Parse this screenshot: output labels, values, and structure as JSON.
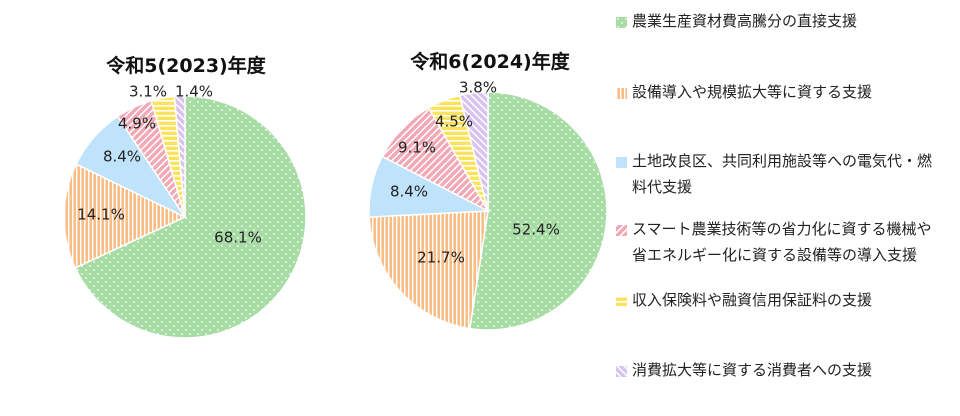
{
  "chart_data": [
    {
      "type": "pie",
      "title": "令和5(2023)年度",
      "slices": [
        {
          "name": "農業生産資材費高騰分の直接支援",
          "value": 68.1,
          "label": "68.1%"
        },
        {
          "name": "設備導入や規模拡大等に資する支援",
          "value": 14.1,
          "label": "14.1%"
        },
        {
          "name": "土地改良区、共同利用施設等への電気代・燃料代支援",
          "value": 8.4,
          "label": "8.4%"
        },
        {
          "name": "スマート農業技術等の省力化に資する機械や省エネルギー化に資する設備等の導入支援",
          "value": 4.9,
          "label": "4.9%"
        },
        {
          "name": "収入保険料や融資信用保証料の支援",
          "value": 3.1,
          "label": "3.1%"
        },
        {
          "name": "消費拡大等に資する消費者への支援",
          "value": 1.4,
          "label": "1.4%"
        }
      ]
    },
    {
      "type": "pie",
      "title": "令和6(2024)年度",
      "slices": [
        {
          "name": "農業生産資材費高騰分の直接支援",
          "value": 52.4,
          "label": "52.4%"
        },
        {
          "name": "設備導入や規模拡大等に資する支援",
          "value": 21.7,
          "label": "21.7%"
        },
        {
          "name": "土地改良区、共同利用施設等への電気代・燃料代支援",
          "value": 8.4,
          "label": "8.4%"
        },
        {
          "name": "スマート農業技術等の省力化に資する機械や省エネルギー化に資する設備等の導入支援",
          "value": 9.1,
          "label": "9.1%"
        },
        {
          "name": "収入保険料や融資信用保証料の支援",
          "value": 4.5,
          "label": "4.5%"
        },
        {
          "name": "消費拡大等に資する消費者への支援",
          "value": 3.8,
          "label": "3.8%"
        }
      ]
    }
  ],
  "legend": [
    {
      "label": "農業生産資材費高騰分の直接支援",
      "lines": [
        "農業生産資材費高騰分の直接支援"
      ],
      "color": "#a8dca5",
      "pattern": "dots"
    },
    {
      "label": "設備導入や規模拡大等に資する支援",
      "lines": [
        "設備導入や規模拡大等に資する支援"
      ],
      "color": "#fbbd86",
      "pattern": "vstripes"
    },
    {
      "label": "土地改良区、共同利用施設等への電気代・燃料代支援",
      "lines": [
        "土地改良区、共同利用施設等への電気代・燃",
        "料代支援"
      ],
      "color": "#bfe3fa",
      "pattern": "solid"
    },
    {
      "label": "スマート農業技術等の省力化に資する機械や省エネルギー化に資する設備等の導入支援",
      "lines": [
        "スマート農業技術等の省力化に資する機械や",
        "省エネルギー化に資する設備等の導入支援"
      ],
      "color": "#f2a9b6",
      "pattern": "diag"
    },
    {
      "label": "収入保険料や融資信用保証料の支援",
      "lines": [
        "収入保険料や融資信用保証料の支援"
      ],
      "color": "#fde35a",
      "pattern": "hstripes"
    },
    {
      "label": "消費拡大等に資する消費者への支援",
      "lines": [
        "消費拡大等に資する消費者への支援"
      ],
      "color": "#d8c2ef",
      "pattern": "diag2"
    }
  ]
}
